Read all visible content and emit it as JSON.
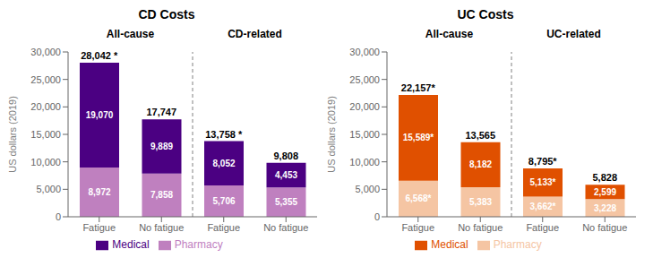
{
  "chart_data": [
    {
      "type": "bar",
      "title": "CD Costs",
      "y_label": "US dollars (2019)",
      "categories": [
        "Fatigue",
        "No fatigue",
        "Fatigue",
        "No fatigue"
      ],
      "group_labels": [
        "All-cause",
        "CD-related"
      ],
      "series": [
        {
          "name": "Pharmacy",
          "color": "#bf80bf",
          "values": [
            8972,
            7858,
            5706,
            5355
          ],
          "value_labels": [
            "8,972",
            "7,858",
            "5,706",
            "5,355"
          ]
        },
        {
          "name": "Medical",
          "color": "#4b0082",
          "values": [
            19070,
            9889,
            8052,
            4453
          ],
          "value_labels": [
            "19,070",
            "9,889",
            "8,052",
            "4,453"
          ]
        }
      ],
      "totals": {
        "values": [
          28042,
          17747,
          13758,
          9808
        ],
        "value_labels": [
          "28,042 *",
          "17,747",
          "13,758 *",
          "9,808"
        ]
      },
      "stacked": true,
      "data_labels": true,
      "grid": false,
      "legend": "bottom",
      "ylim": [
        0,
        30000
      ],
      "yticks": [
        0,
        {
          "value": 5000,
          "label": "5,000"
        },
        {
          "value": 10000,
          "label": "10,000"
        },
        {
          "value": 15000,
          "label": "15,000"
        },
        {
          "value": 20000,
          "label": "20,000"
        },
        {
          "value": 25000,
          "label": "25,000"
        },
        {
          "value": 30000,
          "label": "30,000"
        }
      ]
    },
    {
      "type": "bar",
      "title": "UC Costs",
      "y_label": "US dollars (2019)",
      "categories": [
        "Fatigue",
        "No fatigue",
        "Fatigue",
        "No fatigue"
      ],
      "group_labels": [
        "All-cause",
        "UC-related"
      ],
      "series": [
        {
          "name": "Pharmacy",
          "color": "#f5c5a3",
          "values": [
            6568,
            5383,
            3662,
            3228
          ],
          "value_labels": [
            "6,568*",
            "5,383",
            "3,662*",
            "3,228"
          ]
        },
        {
          "name": "Medical",
          "color": "#e05000",
          "values": [
            15589,
            8182,
            5133,
            2599
          ],
          "value_labels": [
            "15,589*",
            "8,182",
            "5,133*",
            "2,599"
          ]
        }
      ],
      "totals": {
        "values": [
          22157,
          13565,
          8795,
          5828
        ],
        "value_labels": [
          "22,157*",
          "13,565",
          "8,795*",
          "5,828"
        ]
      },
      "stacked": true,
      "data_labels": true,
      "grid": false,
      "legend": "bottom",
      "ylim": [
        0,
        30000
      ],
      "yticks": [
        0,
        {
          "value": 5000,
          "label": "5,000"
        },
        {
          "value": 10000,
          "label": "10,000"
        },
        {
          "value": 15000,
          "label": "15,000"
        },
        {
          "value": 20000,
          "label": "20,000"
        },
        {
          "value": 25000,
          "label": "25,000"
        },
        {
          "value": 30000,
          "label": "30,000"
        }
      ]
    }
  ]
}
